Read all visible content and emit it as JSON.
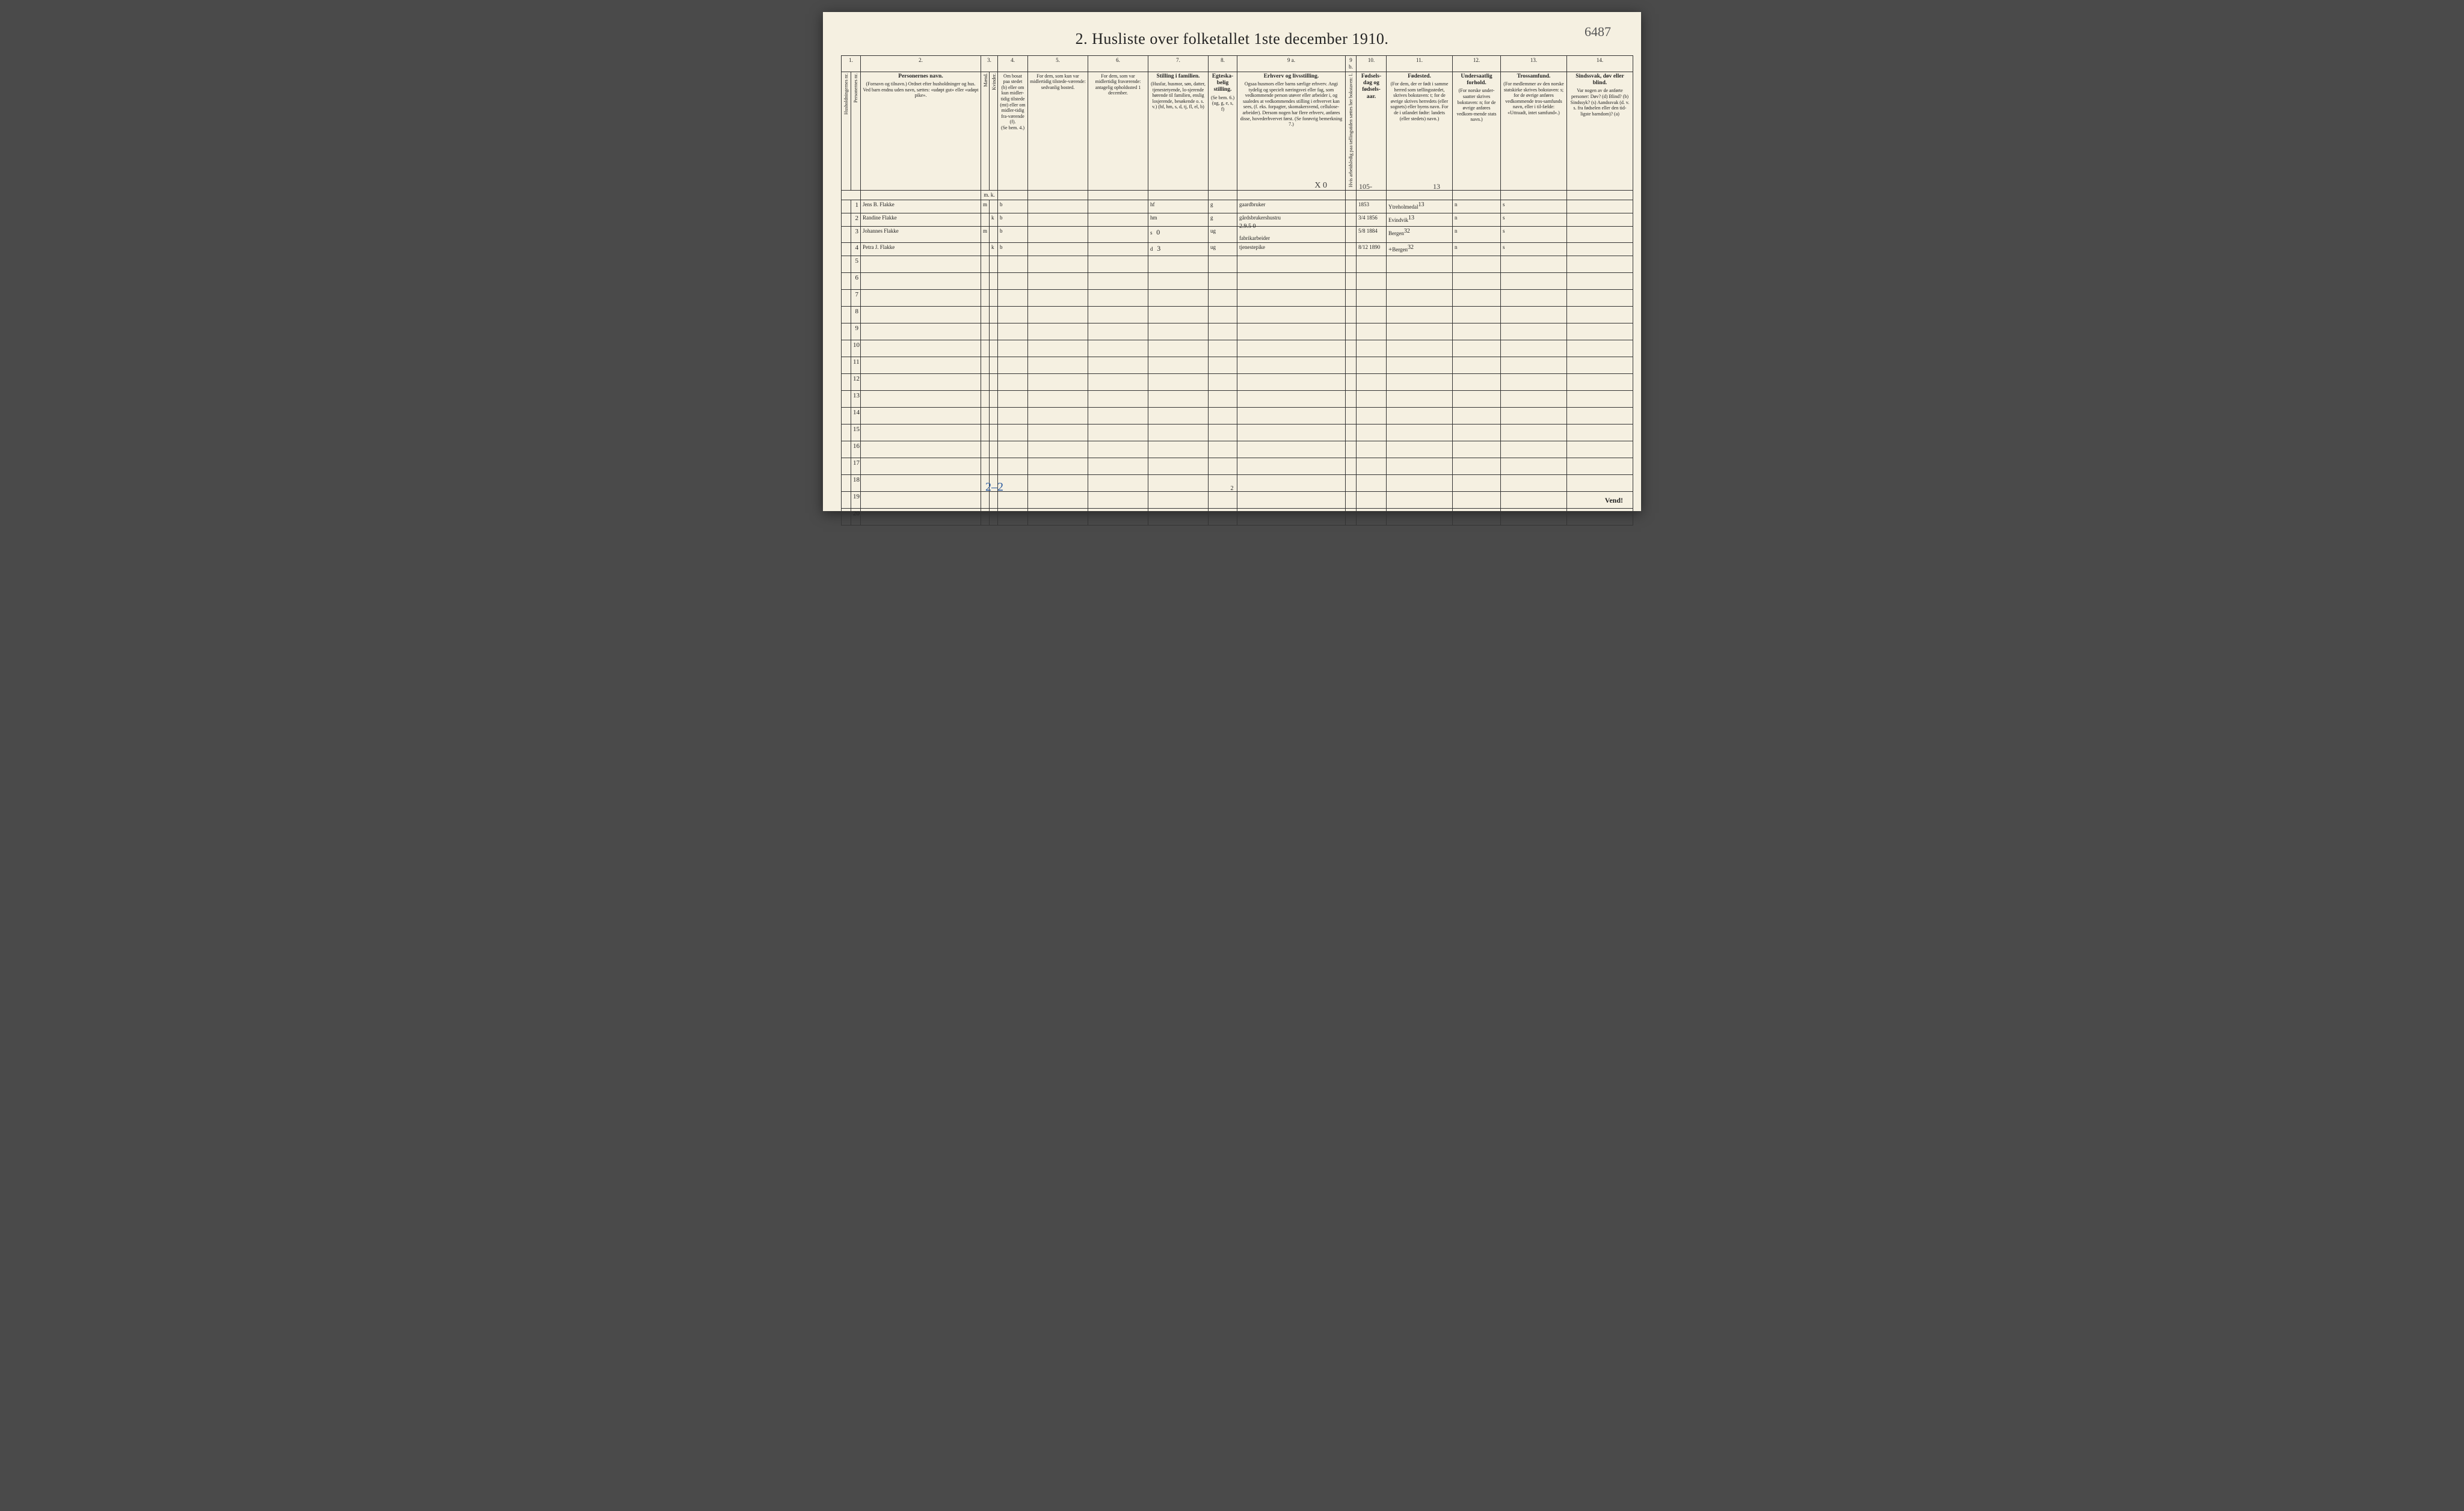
{
  "title": "2.  Husliste over folketallet 1ste december 1910.",
  "page_annotation_top_right": "6487",
  "bottom_handwritten": "2–2",
  "page_foot": "2",
  "vend": "Vend!",
  "columns": {
    "c1": {
      "num": "1.",
      "h1": "Husholdningernes nr.",
      "h2": "Personernes nr."
    },
    "c2": {
      "num": "2.",
      "title": "Personernes navn.",
      "sub": "(Fornavn og tilnavn.)\nOrdnet efter husholdninger og hus.\nVed barn endnu uden navn, sættes: «udøpt gut» eller «udøpt pike»."
    },
    "c3": {
      "num": "3.",
      "title": "Kjøn.",
      "sub1": "Mænd.",
      "sub2": "Kvinder.",
      "foot": "m.  k."
    },
    "c4": {
      "num": "4.",
      "title": "Om bosat paa stedet (b) eller om kun midler-tidig tilstede (mt) eller om midler-tidig fra-værende (f).",
      "foot": "(Se bem. 4.)"
    },
    "c5": {
      "num": "5.",
      "title": "For dem, som kun var midlertidig tilstede-værende:",
      "sub": "sedvanlig bosted."
    },
    "c6": {
      "num": "6.",
      "title": "For dem, som var midlertidig fraværende:",
      "sub": "antagelig opholdssted 1 december."
    },
    "c7": {
      "num": "7.",
      "title": "Stilling i familien.",
      "sub": "(Husfar, husmor, søn, datter, tjenestetyende, lo-sjerende hørende til familien, enslig losjerende, besøkende o. s. v.)\n(hf, hm, s, d, tj, fl, el, b)"
    },
    "c8": {
      "num": "8.",
      "title": "Egteska-belig stilling.",
      "sub": "(Se bem. 6.) (ug, g, e, s, f)"
    },
    "c9a": {
      "num": "9 a.",
      "title": "Erhverv og livsstilling.",
      "sub": "Ogsaa husmors eller barns særlige erhverv. Angi tydelig og specielt næringsvei eller fag, som vedkommende person utøver eller arbeider i, og saaledes at vedkommendes stilling i erhvervet kan sees, (f. eks. forpagter, skomakersvend, cellulose-arbeider). Dersom nogen har flere erhverv, anføres disse, hovederhvervet først.\n(Se forøvrig bemerkning 7.)"
    },
    "c9b": {
      "num": "9 b.",
      "sub": "Hvis arbeidsledig paa tællingstiden sættes her bokstaven: l."
    },
    "c10": {
      "num": "10.",
      "title": "Fødsels-dag og fødsels-aar."
    },
    "c11": {
      "num": "11.",
      "title": "Fødested.",
      "sub": "(For dem, der er født i samme herred som tællingsstedet, skrives bokstaven: t; for de øvrige skrives herredets (eller sognets) eller byens navn. For de i utlandet fødte: landets (eller stedets) navn.)"
    },
    "c12": {
      "num": "12.",
      "title": "Undersaatlig forhold.",
      "sub": "(For norske under-saatter skrives bokstaven: n; for de øvrige anføres vedkom-mende stats navn.)"
    },
    "c13": {
      "num": "13.",
      "title": "Trossamfund.",
      "sub": "(For medlemmer av den norske statskirke skrives bokstaven: s; for de øvrige anføres vedkommende tros-samfunds navn, eller i til-fælde: «Uttraadt, intet samfund».)"
    },
    "c14": {
      "num": "14.",
      "title": "Sindssvak, døv eller blind.",
      "sub": "Var nogen av de anførte personer:\nDøv? (d)\nBlind? (b)\nSindssyk? (s)\nAandssvak (d. v. s. fra fødselen eller den tid-ligste barndom)? (a)"
    }
  },
  "rows": [
    {
      "n": "1",
      "name": "Jens B. Flakke",
      "sex": "m",
      "bosat": "b",
      "c5": "",
      "c6": "",
      "fam": "hf",
      "egt": "g",
      "erhv": "gaardbruker",
      "c9b": "",
      "fod": "1853",
      "fsted": "Ytreholmedal",
      "fsted_sup": "13",
      "unders": "n",
      "tros": "s",
      "c14": ""
    },
    {
      "n": "2",
      "name": "Randine Flakke",
      "sex": "k",
      "bosat": "b",
      "c5": "",
      "c6": "",
      "fam": "hm",
      "egt": "g",
      "erhv": "gårdsbrukershustru",
      "c9b": "",
      "fod": "3/4 1856",
      "fsted": "Evindvik",
      "fsted_sup": "13",
      "unders": "n",
      "tros": "s",
      "c14": ""
    },
    {
      "n": "3",
      "name": "Johannes Flakke",
      "sex": "m",
      "bosat": "b",
      "c5": "",
      "c6": "",
      "fam": "s",
      "famx": "0",
      "egt": "ug",
      "erhv": "fabrikarbeider",
      "erhv_over": "2.9.5 0",
      "c9b": "",
      "fod": "5/8 1884",
      "fsted": "Bergen",
      "fsted_sup": "32",
      "unders": "n",
      "tros": "s",
      "c14": ""
    },
    {
      "n": "4",
      "name": "Petra J. Flakke",
      "sex": "k",
      "bosat": "b",
      "c5": "",
      "c6": "",
      "fam": "d",
      "famx": "3",
      "egt": "ug",
      "erhv": "tjenestepike",
      "c9b": "",
      "fod": "8/12 1890",
      "fsted": "Bergen",
      "fsted_sup": "32",
      "fsted_plus": "+",
      "unders": "n",
      "tros": "s",
      "c14": ""
    }
  ],
  "header_overwrite": {
    "c9a": "X 0",
    "c10": "105-",
    "c11": "13"
  },
  "empty_row_numbers": [
    "5",
    "6",
    "7",
    "8",
    "9",
    "10",
    "11",
    "12",
    "13",
    "14",
    "15",
    "16",
    "17",
    "18",
    "19",
    "20"
  ],
  "col_widths": {
    "c1a": 16,
    "c1b": 16,
    "c2": 200,
    "c3a": 14,
    "c3b": 14,
    "c4": 50,
    "c5": 100,
    "c6": 100,
    "c7": 100,
    "c8": 48,
    "c9a": 180,
    "c9b": 18,
    "c10": 50,
    "c11": 110,
    "c12": 80,
    "c13": 110,
    "c14": 110
  },
  "colors": {
    "paper": "#f5f0e1",
    "ink": "#222222",
    "pencil": "#3a3a3a",
    "blue_pencil": "#2a5aa0",
    "border": "#333333"
  }
}
